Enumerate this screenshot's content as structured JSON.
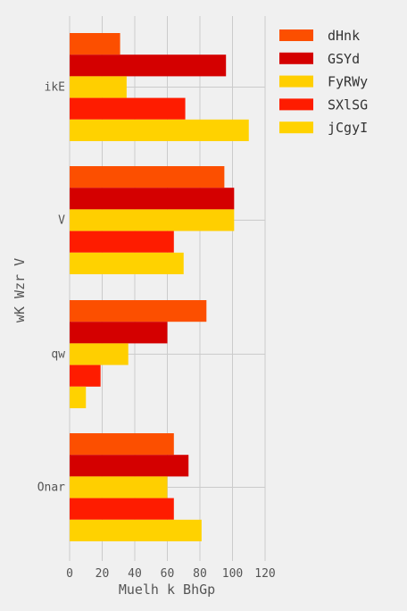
{
  "chart_data": {
    "type": "bar",
    "orientation": "horizontal",
    "categories": [
      "ikE",
      "V",
      "qw",
      "Onar"
    ],
    "series": [
      {
        "name": "dHnk",
        "color": "#fc4f00",
        "values": [
          31,
          95,
          84,
          64
        ]
      },
      {
        "name": "GSYd",
        "color": "#d40000",
        "values": [
          96,
          101,
          60,
          73
        ]
      },
      {
        "name": "FyRWy",
        "color": "#ffcf00",
        "values": [
          35,
          101,
          36,
          60
        ]
      },
      {
        "name": "SXlSG",
        "color": "#fe1c00",
        "values": [
          71,
          64,
          19,
          64
        ]
      },
      {
        "name": "jCgyI",
        "color": "#ffd200",
        "values": [
          110,
          70,
          10,
          81
        ]
      }
    ],
    "xlabel": "Muelh k BhGp",
    "ylabel": "wK Wzr V",
    "xlim": [
      0,
      120
    ],
    "xticks": [
      0,
      20,
      40,
      60,
      80,
      100,
      120
    ],
    "grid": true,
    "legend_position": "top-right"
  }
}
